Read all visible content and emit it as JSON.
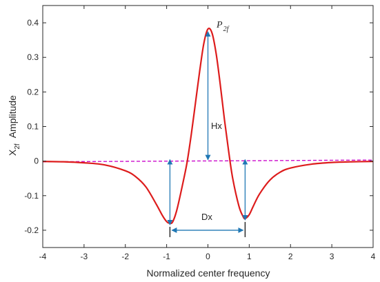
{
  "chart_data": {
    "type": "line",
    "xlabel": "Normalized center frequency",
    "ylabel": {
      "main": "X",
      "sub": "2f",
      "suffix": "Amplitude"
    },
    "xlim": [
      -4,
      4
    ],
    "ylim": [
      -0.25,
      0.45
    ],
    "xticks": [
      -4,
      -3,
      -2,
      -1,
      0,
      1,
      2,
      3,
      4
    ],
    "yticks": [
      -0.2,
      -0.1,
      0,
      0.1,
      0.2,
      0.3,
      0.4
    ],
    "xtick_labels": [
      "-4",
      "-3",
      "-2",
      "-1",
      "0",
      "1",
      "2",
      "3",
      "4"
    ],
    "ytick_labels": [
      "-0.2",
      "-0.1",
      "0",
      "0.1",
      "0.2",
      "0.3",
      "0.4"
    ],
    "grid": false,
    "series": [
      {
        "color": "#dd1c1c",
        "style": "solid",
        "x": [
          -4,
          -3.5,
          -3,
          -2.5,
          -2,
          -1.75,
          -1.5,
          -1.25,
          -1.1,
          -1,
          -0.92,
          -0.85,
          -0.75,
          -0.6,
          -0.5,
          -0.4,
          -0.3,
          -0.2,
          -0.1,
          0,
          0.1,
          0.2,
          0.3,
          0.4,
          0.5,
          0.6,
          0.75,
          0.85,
          0.9,
          1,
          1.1,
          1.25,
          1.5,
          1.75,
          2,
          2.5,
          3,
          3.5,
          4
        ],
        "y": [
          -0.001,
          -0.002,
          -0.005,
          -0.011,
          -0.028,
          -0.045,
          -0.075,
          -0.125,
          -0.158,
          -0.175,
          -0.18,
          -0.175,
          -0.14,
          -0.06,
          0.0,
          0.08,
          0.17,
          0.26,
          0.34,
          0.382,
          0.37,
          0.31,
          0.22,
          0.12,
          0.03,
          -0.05,
          -0.13,
          -0.16,
          -0.166,
          -0.155,
          -0.13,
          -0.095,
          -0.055,
          -0.032,
          -0.02,
          -0.009,
          -0.004,
          -0.002,
          -0.001
        ]
      },
      {
        "color": "#cc0ccc",
        "style": "dashed",
        "x": [
          -4,
          4
        ],
        "y": [
          -0.002,
          0.003
        ]
      }
    ],
    "annotations": {
      "peak": {
        "main": "P",
        "sub": "2f"
      },
      "height_label": "Hx",
      "distance_label": "Dx"
    },
    "colors": {
      "curve": "#dd1c1c",
      "baseline": "#cc0ccc",
      "arrows": "#1f77b4",
      "axes": "#262626"
    }
  }
}
